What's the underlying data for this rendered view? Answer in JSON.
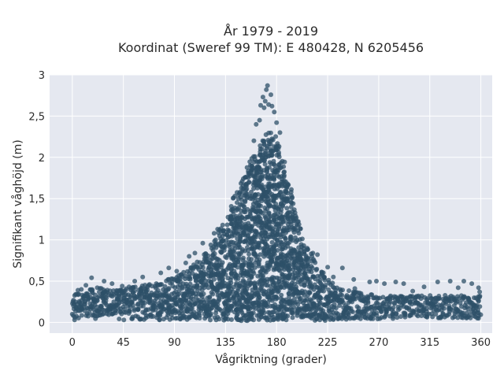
{
  "chart_data": {
    "type": "scatter",
    "title": "År 1979 - 2019",
    "subtitle": "Koordinat (Sweref 99 TM): E 480428, N 6205456",
    "xlabel": "Vågriktning (grader)",
    "ylabel": "Signifikant våghöjd (m)",
    "xlim": [
      -20,
      370
    ],
    "ylim": [
      -0.13,
      3.0
    ],
    "xticks": [
      0,
      45,
      90,
      135,
      180,
      225,
      270,
      315,
      360
    ],
    "xtick_labels": [
      "0",
      "45",
      "90",
      "135",
      "180",
      "225",
      "270",
      "315",
      "360"
    ],
    "yticks": [
      0,
      0.5,
      1,
      1.5,
      2,
      2.5,
      3
    ],
    "ytick_labels": [
      "0",
      "0,5",
      "1",
      "1,5",
      "2",
      "2,5",
      "3"
    ],
    "grid": true,
    "background_color": "#e5e8f0",
    "marker_color": "#2e5068",
    "envelope_upper": {
      "x": [
        0,
        20,
        45,
        70,
        90,
        110,
        125,
        135,
        145,
        155,
        165,
        172,
        178,
        185,
        195,
        205,
        215,
        225,
        240,
        260,
        280,
        300,
        320,
        340,
        360
      ],
      "y": [
        0.33,
        0.42,
        0.4,
        0.48,
        0.55,
        0.72,
        1.0,
        1.25,
        1.6,
        1.95,
        2.15,
        2.3,
        2.3,
        2.0,
        1.45,
        0.95,
        0.72,
        0.52,
        0.4,
        0.34,
        0.33,
        0.33,
        0.33,
        0.33,
        0.33
      ]
    },
    "envelope_lower": {
      "x": [
        0,
        45,
        90,
        135,
        180,
        225,
        270,
        315,
        360
      ],
      "y": [
        0.05,
        0.03,
        0.03,
        0.02,
        0.02,
        0.02,
        0.04,
        0.05,
        0.05
      ]
    },
    "points": [
      [
        172,
        2.87
      ],
      [
        171,
        2.82
      ],
      [
        175,
        2.76
      ],
      [
        168,
        2.73
      ],
      [
        170,
        2.68
      ],
      [
        173,
        2.64
      ],
      [
        166,
        2.63
      ],
      [
        176,
        2.62
      ],
      [
        169,
        2.6
      ],
      [
        178,
        2.55
      ],
      [
        165,
        2.45
      ],
      [
        162,
        2.4
      ],
      [
        180,
        2.42
      ],
      [
        183,
        2.3
      ],
      [
        160,
        2.2
      ],
      [
        17,
        0.54
      ],
      [
        28,
        0.5
      ],
      [
        12,
        0.45
      ],
      [
        35,
        0.47
      ],
      [
        55,
        0.5
      ],
      [
        62,
        0.55
      ],
      [
        78,
        0.6
      ],
      [
        85,
        0.66
      ],
      [
        100,
        0.72
      ],
      [
        103,
        0.8
      ],
      [
        108,
        0.84
      ],
      [
        115,
        0.96
      ],
      [
        125,
        1.08
      ],
      [
        128,
        1.13
      ],
      [
        212,
        0.84
      ],
      [
        216,
        0.82
      ],
      [
        207,
        0.9
      ],
      [
        225,
        0.67
      ],
      [
        238,
        0.66
      ],
      [
        230,
        0.55
      ],
      [
        248,
        0.52
      ],
      [
        262,
        0.49
      ],
      [
        268,
        0.5
      ],
      [
        275,
        0.47
      ],
      [
        285,
        0.49
      ],
      [
        292,
        0.47
      ],
      [
        310,
        0.43
      ],
      [
        322,
        0.49
      ],
      [
        333,
        0.5
      ],
      [
        345,
        0.5
      ],
      [
        352,
        0.47
      ],
      [
        358,
        0.42
      ],
      [
        5,
        0.39
      ],
      [
        3,
        0.34
      ],
      [
        8,
        0.4
      ],
      [
        22,
        0.42
      ],
      [
        44,
        0.44
      ],
      [
        50,
        0.43
      ],
      [
        68,
        0.46
      ],
      [
        92,
        0.62
      ],
      [
        96,
        0.58
      ],
      [
        249,
        0.41
      ],
      [
        300,
        0.38
      ],
      [
        340,
        0.42
      ],
      [
        359,
        0.37
      ],
      [
        357,
        0.28
      ],
      [
        356,
        0.18
      ],
      [
        354,
        0.08
      ],
      [
        358,
        0.05
      ],
      [
        0,
        0.1
      ],
      [
        2,
        0.03
      ],
      [
        1,
        0.2
      ],
      [
        1,
        0.27
      ]
    ]
  }
}
